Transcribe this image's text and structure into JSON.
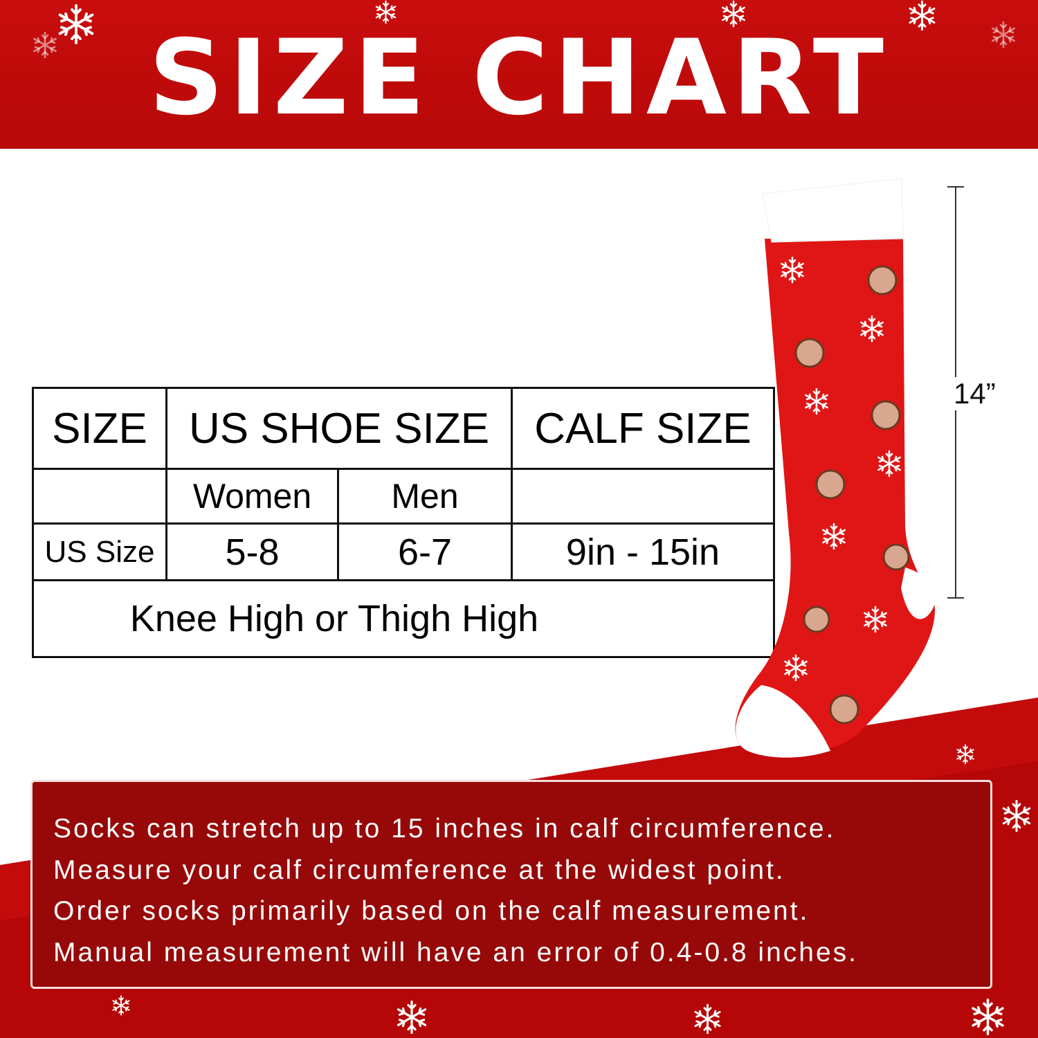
{
  "title": "SIZE CHART",
  "table": {
    "headers": [
      "SIZE",
      "US SHOE SIZE",
      "CALF SIZE"
    ],
    "subheaders": [
      "",
      "Women",
      "Men",
      ""
    ],
    "row": {
      "label": "US Size",
      "women": "5-8",
      "men": "6-7",
      "calf": "9in - 15in"
    },
    "footer": "Knee High or Thigh High"
  },
  "measurement": {
    "length_label": "14”"
  },
  "notes": [
    "Socks can stretch up to 15 inches in calf circumference.",
    "Measure your calf circumference at the widest point.",
    "Order socks primarily based on the calf measurement.",
    "Manual measurement will have an error of 0.4-0.8 inches."
  ],
  "colors": {
    "brand_red": "#c80d0d",
    "note_box": "#970909"
  },
  "icons": [
    "snowflake-icon",
    "reindeer-icon"
  ]
}
